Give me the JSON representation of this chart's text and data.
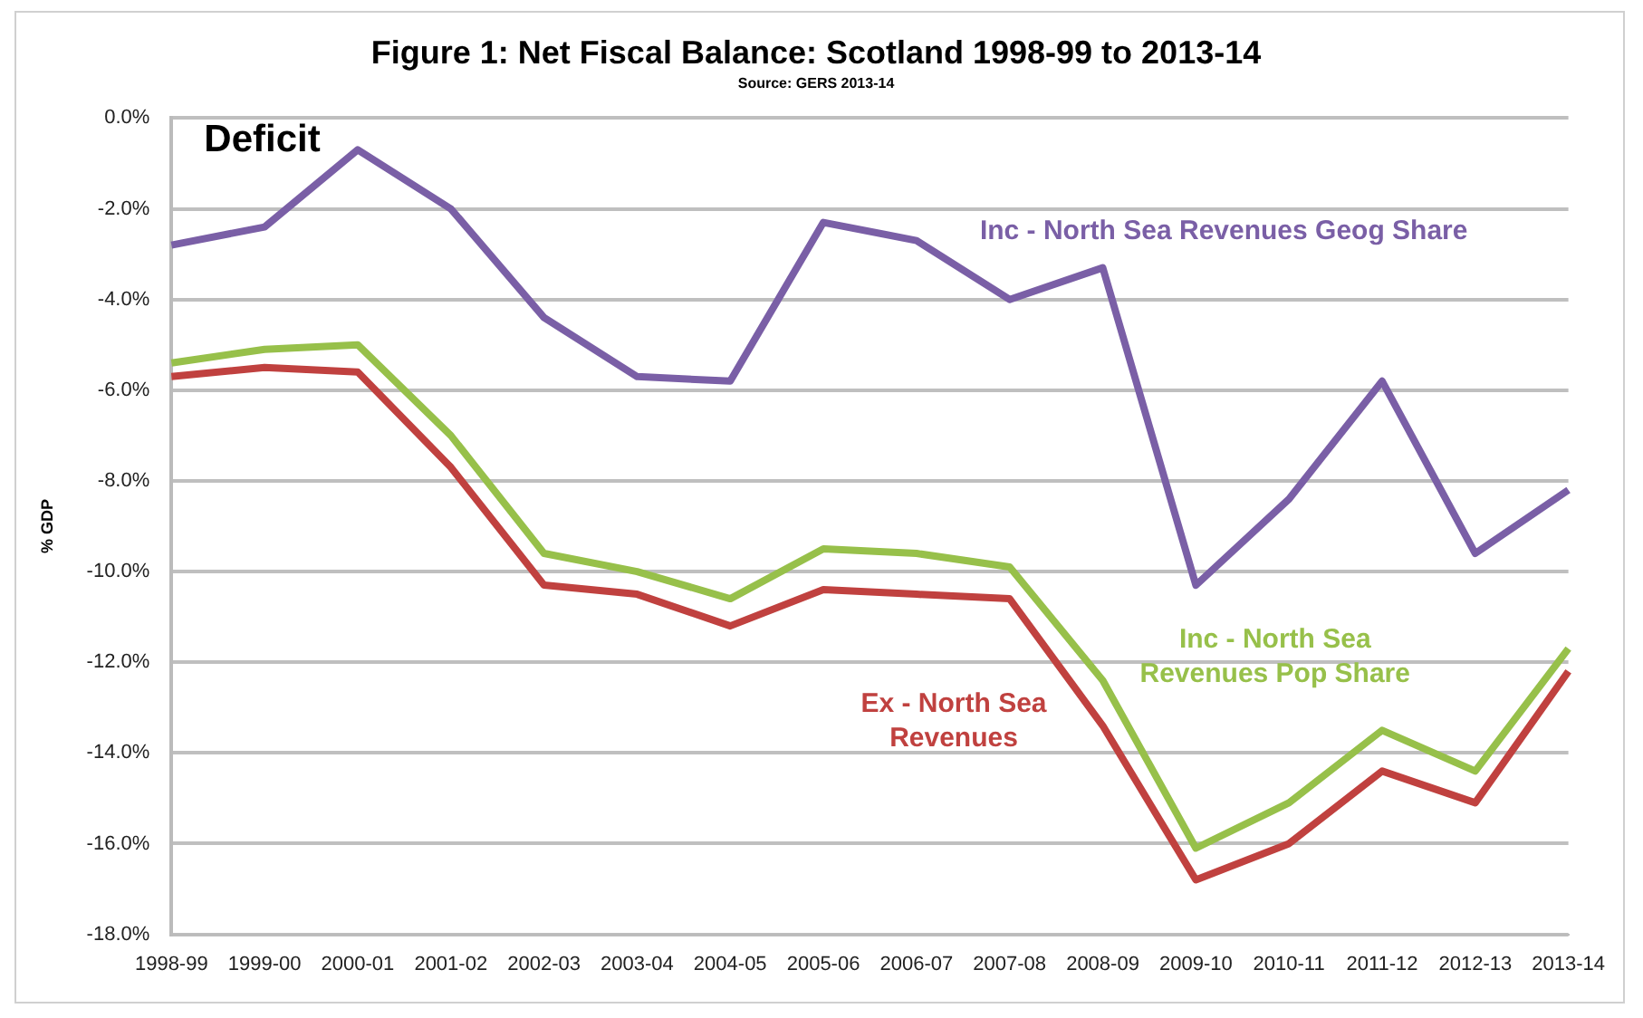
{
  "chart_data": {
    "type": "line",
    "title": "Figure 1: Net Fiscal Balance: Scotland 1998-99 to 2013-14",
    "subtitle": "Source: GERS 2013-14",
    "ylabel": "% GDP",
    "annotations": [
      "Deficit"
    ],
    "categories": [
      "1998-99",
      "1999-00",
      "2000-01",
      "2001-02",
      "2002-03",
      "2003-04",
      "2004-05",
      "2005-06",
      "2006-07",
      "2007-08",
      "2008-09",
      "2009-10",
      "2010-11",
      "2011-12",
      "2012-13",
      "2013-14"
    ],
    "series": [
      {
        "name": "Inc - North Sea Revenues Geog Share",
        "color": "#7a5fa6",
        "values": [
          -2.8,
          -2.4,
          -0.7,
          -2.0,
          -4.4,
          -5.7,
          -5.8,
          -2.3,
          -2.7,
          -4.0,
          -3.3,
          -10.3,
          -8.4,
          -5.8,
          -9.6,
          -8.2
        ]
      },
      {
        "name": "Inc - North Sea Revenues Pop Share",
        "color": "#97c04a",
        "values": [
          -5.4,
          -5.1,
          -5.0,
          -7.0,
          -9.6,
          -10.0,
          -10.6,
          -9.5,
          -9.6,
          -9.9,
          -12.4,
          -16.1,
          -15.1,
          -13.5,
          -14.4,
          -11.7
        ]
      },
      {
        "name": "Ex - North Sea Revenues",
        "color": "#c0413f",
        "values": [
          -5.7,
          -5.5,
          -5.6,
          -7.7,
          -10.3,
          -10.5,
          -11.2,
          -10.4,
          -10.5,
          -10.6,
          -13.4,
          -16.8,
          -16.0,
          -14.4,
          -15.1,
          -12.2
        ]
      }
    ],
    "ylim": [
      -18,
      0
    ],
    "yticks": [
      {
        "value": -18,
        "label": "-18.0%"
      },
      {
        "value": -16,
        "label": "-16.0%"
      },
      {
        "value": -14,
        "label": "-14.0%"
      },
      {
        "value": -12,
        "label": "-12.0%"
      },
      {
        "value": -10,
        "label": "-10.0%"
      },
      {
        "value": -8,
        "label": "-8.0%"
      },
      {
        "value": -6,
        "label": "-6.0%"
      },
      {
        "value": -4,
        "label": "-4.0%"
      },
      {
        "value": -2,
        "label": "-2.0%"
      },
      {
        "value": 0,
        "label": "0.0%"
      }
    ],
    "grid": "y",
    "legend": false,
    "marker": "none",
    "line_style": "solid"
  }
}
